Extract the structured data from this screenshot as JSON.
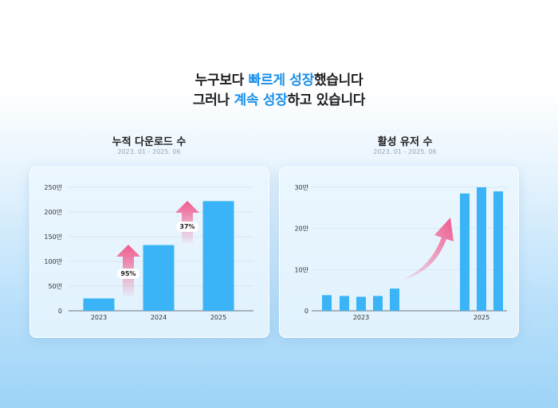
{
  "headline": {
    "line1": {
      "before": "누구보다 ",
      "highlight": "빠르게 성장",
      "after": "했습니다"
    },
    "line2": {
      "before": "그러나 ",
      "highlight": "계속 성장",
      "after": "하고 있습니다"
    }
  },
  "colors": {
    "bar": "#3bb4f7",
    "accent": "#1b8fe8",
    "arrow": "#f05a8c"
  },
  "chart_data": [
    {
      "type": "bar",
      "title": "누적 다운로드 수",
      "period": "2023. 01 - 2025. 06",
      "categories": [
        "2023",
        "2024",
        "2025"
      ],
      "values": [
        25,
        133,
        222
      ],
      "yticks": [
        0,
        50,
        100,
        150,
        200,
        250
      ],
      "ytick_labels": [
        "0",
        "50만",
        "100만",
        "150만",
        "200만",
        "250만"
      ],
      "ylim": [
        0,
        250
      ],
      "grid": true,
      "growth_annotations": [
        {
          "between": [
            "2023",
            "2024"
          ],
          "label": "95%"
        },
        {
          "between": [
            "2024",
            "2025"
          ],
          "label": "37%"
        }
      ]
    },
    {
      "type": "bar",
      "title": "활성 유저 수",
      "period": "2023. 01 - 2025. 06",
      "x_labels": [
        "2023",
        "2025"
      ],
      "groups": [
        {
          "label": "2023",
          "values": [
            3.8,
            3.6,
            3.4,
            3.6,
            5.4
          ]
        },
        {
          "label": "2025",
          "values": [
            28.5,
            30,
            29
          ]
        }
      ],
      "yticks": [
        0,
        10,
        20,
        30
      ],
      "ytick_labels": [
        "0",
        "10만",
        "20만",
        "30만"
      ],
      "ylim": [
        0,
        30
      ],
      "grid": true
    }
  ]
}
